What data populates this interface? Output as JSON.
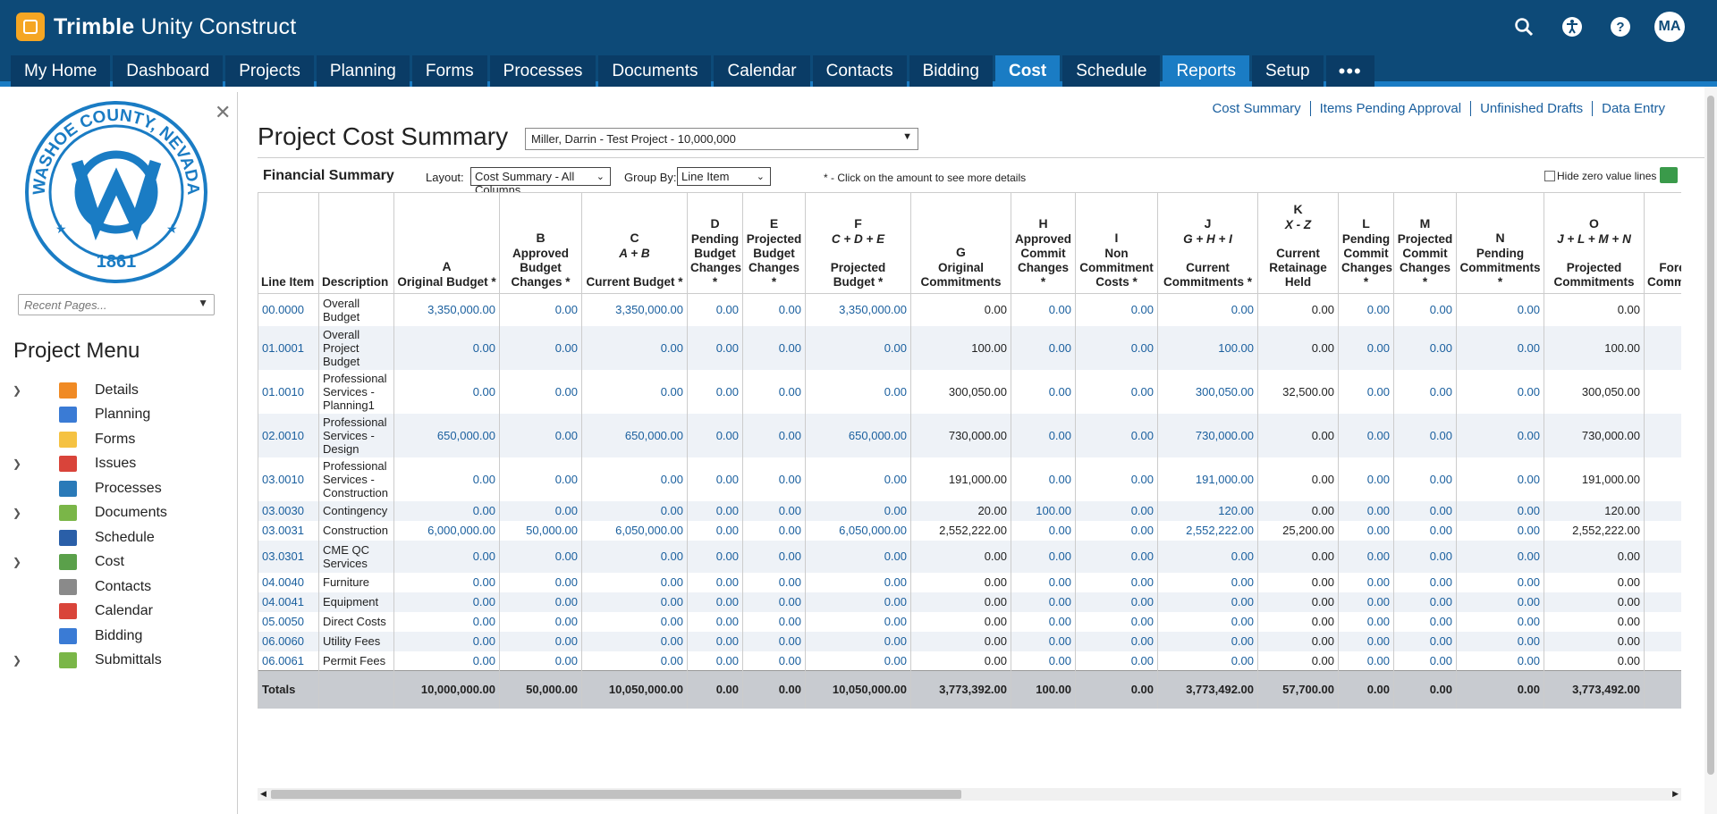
{
  "brand": {
    "bold": "Trimble",
    "rest": " Unity Construct"
  },
  "user_initials": "MA",
  "nav": [
    {
      "label": "My Home"
    },
    {
      "label": "Dashboard"
    },
    {
      "label": "Projects"
    },
    {
      "label": "Planning"
    },
    {
      "label": "Forms"
    },
    {
      "label": "Processes"
    },
    {
      "label": "Documents"
    },
    {
      "label": "Calendar"
    },
    {
      "label": "Contacts"
    },
    {
      "label": "Bidding"
    },
    {
      "label": "Cost",
      "active": true
    },
    {
      "label": "Schedule"
    },
    {
      "label": "Reports"
    },
    {
      "label": "Setup"
    },
    {
      "label": "•••"
    }
  ],
  "sidebar": {
    "seal": {
      "top": "WASHOE COUNTY, NEVADA",
      "year": "1861"
    },
    "recent_placeholder": "Recent Pages...",
    "menu_title": "Project Menu",
    "items": [
      {
        "label": "Details",
        "expand": true,
        "color": "#f08a24"
      },
      {
        "label": "Planning",
        "expand": false,
        "color": "#3a7bd5"
      },
      {
        "label": "Forms",
        "expand": false,
        "color": "#f5c242"
      },
      {
        "label": "Issues",
        "expand": true,
        "color": "#d9443a"
      },
      {
        "label": "Processes",
        "expand": false,
        "color": "#2a7ab8"
      },
      {
        "label": "Documents",
        "expand": true,
        "color": "#7ab648"
      },
      {
        "label": "Schedule",
        "expand": false,
        "color": "#2a5fa8"
      },
      {
        "label": "Cost",
        "expand": true,
        "color": "#5aa04a"
      },
      {
        "label": "Contacts",
        "expand": false,
        "color": "#8a8a8a"
      },
      {
        "label": "Calendar",
        "expand": false,
        "color": "#d9443a"
      },
      {
        "label": "Bidding",
        "expand": false,
        "color": "#3a7bd5"
      },
      {
        "label": "Submittals",
        "expand": true,
        "color": "#7ab648"
      }
    ]
  },
  "links": [
    "Cost Summary",
    "Items Pending Approval",
    "Unfinished Drafts",
    "Data Entry"
  ],
  "page_title": "Project Cost Summary",
  "project_select": "Miller, Darrin - Test Project - 10,000,000",
  "financial_summary": "Financial Summary",
  "layout_label": "Layout:",
  "layout_value": "Cost Summary - All Columns",
  "groupby_label": "Group By:",
  "groupby_value": "Line Item",
  "hint": "* - Click on the amount to see more details",
  "hide_zero": "Hide zero value lines",
  "columns": [
    {
      "letter": "",
      "formula": "",
      "name": "Line Item"
    },
    {
      "letter": "",
      "formula": "",
      "name": "Description"
    },
    {
      "letter": "A",
      "formula": "",
      "name": "Original Budget *"
    },
    {
      "letter": "B",
      "formula": "",
      "name": "Approved Budget Changes *"
    },
    {
      "letter": "C",
      "formula": "A + B",
      "name": "Current Budget *"
    },
    {
      "letter": "D",
      "formula": "",
      "name": "Pending Budget Changes *"
    },
    {
      "letter": "E",
      "formula": "",
      "name": "Projected Budget Changes *"
    },
    {
      "letter": "F",
      "formula": "C + D + E",
      "name": "Projected Budget *"
    },
    {
      "letter": "G",
      "formula": "",
      "name": "Original Commitments"
    },
    {
      "letter": "H",
      "formula": "",
      "name": "Approved Commit Changes *"
    },
    {
      "letter": "I",
      "formula": "",
      "name": "Non Commitment Costs *"
    },
    {
      "letter": "J",
      "formula": "G + H + I",
      "name": "Current Commitments *"
    },
    {
      "letter": "K",
      "formula": "X - Z",
      "name": "Current Retainage Held"
    },
    {
      "letter": "L",
      "formula": "",
      "name": "Pending Commit Changes *"
    },
    {
      "letter": "M",
      "formula": "",
      "name": "Projected Commit Changes *"
    },
    {
      "letter": "N",
      "formula": "",
      "name": "Pending Commitments *"
    },
    {
      "letter": "O",
      "formula": "J + L + M + N",
      "name": "Projected Commitments"
    },
    {
      "letter": "",
      "formula": "",
      "name": "Forecast Commitments"
    }
  ],
  "rows": [
    {
      "line": "00.0000",
      "desc": "Overall Budget",
      "v": [
        "3,350,000.00",
        "0.00",
        "3,350,000.00",
        "0.00",
        "0.00",
        "3,350,000.00",
        "0.00",
        "0.00",
        "0.00",
        "0.00",
        "0.00",
        "0.00",
        "0.00",
        "0.00",
        "0.00",
        ""
      ]
    },
    {
      "line": "01.0001",
      "desc": "Overall Project Budget",
      "v": [
        "0.00",
        "0.00",
        "0.00",
        "0.00",
        "0.00",
        "0.00",
        "100.00",
        "0.00",
        "0.00",
        "100.00",
        "0.00",
        "0.00",
        "0.00",
        "0.00",
        "100.00",
        ""
      ]
    },
    {
      "line": "01.0010",
      "desc": "Professional Services - Planning1",
      "v": [
        "0.00",
        "0.00",
        "0.00",
        "0.00",
        "0.00",
        "0.00",
        "300,050.00",
        "0.00",
        "0.00",
        "300,050.00",
        "32,500.00",
        "0.00",
        "0.00",
        "0.00",
        "300,050.00",
        ""
      ]
    },
    {
      "line": "02.0010",
      "desc": "Professional Services - Design",
      "v": [
        "650,000.00",
        "0.00",
        "650,000.00",
        "0.00",
        "0.00",
        "650,000.00",
        "730,000.00",
        "0.00",
        "0.00",
        "730,000.00",
        "0.00",
        "0.00",
        "0.00",
        "0.00",
        "730,000.00",
        ""
      ]
    },
    {
      "line": "03.0010",
      "desc": "Professional Services - Construction",
      "v": [
        "0.00",
        "0.00",
        "0.00",
        "0.00",
        "0.00",
        "0.00",
        "191,000.00",
        "0.00",
        "0.00",
        "191,000.00",
        "0.00",
        "0.00",
        "0.00",
        "0.00",
        "191,000.00",
        ""
      ]
    },
    {
      "line": "03.0030",
      "desc": "Contingency",
      "v": [
        "0.00",
        "0.00",
        "0.00",
        "0.00",
        "0.00",
        "0.00",
        "20.00",
        "100.00",
        "0.00",
        "120.00",
        "0.00",
        "0.00",
        "0.00",
        "0.00",
        "120.00",
        ""
      ]
    },
    {
      "line": "03.0031",
      "desc": "Construction",
      "v": [
        "6,000,000.00",
        "50,000.00",
        "6,050,000.00",
        "0.00",
        "0.00",
        "6,050,000.00",
        "2,552,222.00",
        "0.00",
        "0.00",
        "2,552,222.00",
        "25,200.00",
        "0.00",
        "0.00",
        "0.00",
        "2,552,222.00",
        ""
      ]
    },
    {
      "line": "03.0301",
      "desc": "CME QC Services",
      "v": [
        "0.00",
        "0.00",
        "0.00",
        "0.00",
        "0.00",
        "0.00",
        "0.00",
        "0.00",
        "0.00",
        "0.00",
        "0.00",
        "0.00",
        "0.00",
        "0.00",
        "0.00",
        ""
      ]
    },
    {
      "line": "04.0040",
      "desc": "Furniture",
      "v": [
        "0.00",
        "0.00",
        "0.00",
        "0.00",
        "0.00",
        "0.00",
        "0.00",
        "0.00",
        "0.00",
        "0.00",
        "0.00",
        "0.00",
        "0.00",
        "0.00",
        "0.00",
        ""
      ]
    },
    {
      "line": "04.0041",
      "desc": "Equipment",
      "v": [
        "0.00",
        "0.00",
        "0.00",
        "0.00",
        "0.00",
        "0.00",
        "0.00",
        "0.00",
        "0.00",
        "0.00",
        "0.00",
        "0.00",
        "0.00",
        "0.00",
        "0.00",
        ""
      ]
    },
    {
      "line": "05.0050",
      "desc": "Direct Costs",
      "v": [
        "0.00",
        "0.00",
        "0.00",
        "0.00",
        "0.00",
        "0.00",
        "0.00",
        "0.00",
        "0.00",
        "0.00",
        "0.00",
        "0.00",
        "0.00",
        "0.00",
        "0.00",
        ""
      ]
    },
    {
      "line": "06.0060",
      "desc": "Utility Fees",
      "v": [
        "0.00",
        "0.00",
        "0.00",
        "0.00",
        "0.00",
        "0.00",
        "0.00",
        "0.00",
        "0.00",
        "0.00",
        "0.00",
        "0.00",
        "0.00",
        "0.00",
        "0.00",
        ""
      ]
    },
    {
      "line": "06.0061",
      "desc": "Permit Fees",
      "v": [
        "0.00",
        "0.00",
        "0.00",
        "0.00",
        "0.00",
        "0.00",
        "0.00",
        "0.00",
        "0.00",
        "0.00",
        "0.00",
        "0.00",
        "0.00",
        "0.00",
        "0.00",
        ""
      ]
    }
  ],
  "totals": {
    "label": "Totals",
    "v": [
      "10,000,000.00",
      "50,000.00",
      "10,050,000.00",
      "0.00",
      "0.00",
      "10,050,000.00",
      "3,773,392.00",
      "100.00",
      "0.00",
      "3,773,492.00",
      "57,700.00",
      "0.00",
      "0.00",
      "0.00",
      "3,773,492.00",
      ""
    ]
  },
  "link_columns": [
    0,
    1,
    2,
    3,
    4,
    5,
    7,
    8,
    9,
    11,
    12,
    13
  ]
}
